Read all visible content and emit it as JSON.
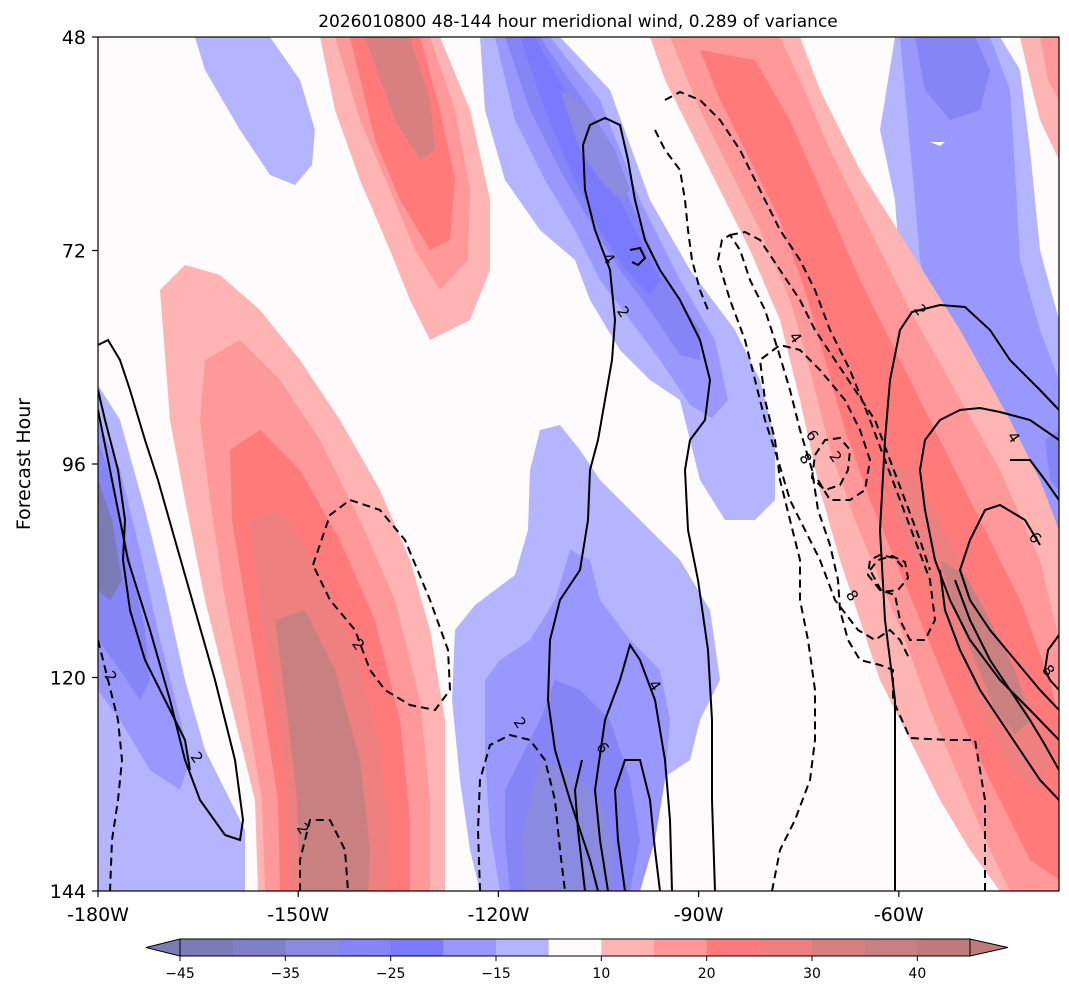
{
  "chart_data": {
    "type": "heatmap",
    "title": "2026010800 48-144 hour meridional wind, 0.289 of variance",
    "ylabel": "Forecast Hour",
    "xlabel": "",
    "xlim": [
      -180,
      -36
    ],
    "ylim": [
      48,
      144
    ],
    "y_inverted": true,
    "x_ticks": [
      {
        "value": -180,
        "label": "-180W"
      },
      {
        "value": -150,
        "label": "-150W"
      },
      {
        "value": -120,
        "label": "-120W"
      },
      {
        "value": -90,
        "label": "-90W"
      },
      {
        "value": -60,
        "label": "-60W"
      }
    ],
    "y_ticks": [
      {
        "value": 48,
        "label": "48"
      },
      {
        "value": 72,
        "label": "72"
      },
      {
        "value": 96,
        "label": "96"
      },
      {
        "value": 120,
        "label": "120"
      },
      {
        "value": 144,
        "label": "144"
      }
    ],
    "colorbar": {
      "levels": [
        -45,
        -40,
        -35,
        -30,
        -25,
        -20,
        -15,
        -10,
        10,
        15,
        20,
        25,
        30,
        35,
        40,
        45
      ],
      "colors": [
        "#7b7bb5",
        "#8080c8",
        "#8a8ae0",
        "#8585f5",
        "#7a7aff",
        "#9898ff",
        "#b4b4ff",
        "#fdfbfc",
        "#ffb4b4",
        "#ff9999",
        "#ff7b7b",
        "#ee8080",
        "#d88080",
        "#c88080",
        "#bf7a7a"
      ],
      "ticks": [
        {
          "value": -45,
          "label": "−45"
        },
        {
          "value": -35,
          "label": "−35"
        },
        {
          "value": -25,
          "label": "−25"
        },
        {
          "value": -15,
          "label": "−15"
        },
        {
          "value": 10,
          "label": "10"
        },
        {
          "value": 20,
          "label": "20"
        },
        {
          "value": 30,
          "label": "30"
        },
        {
          "value": 40,
          "label": "40"
        }
      ],
      "extend": "both"
    },
    "contour_labels": [
      {
        "text": "4",
        "lon": -103.5,
        "hour": 72.9
      },
      {
        "text": "2",
        "lon": -101.3,
        "hour": 78.9
      },
      {
        "text": "2",
        "lon": -56.8,
        "hour": 78.7
      },
      {
        "text": "4",
        "lon": -75.5,
        "hour": 81.8
      },
      {
        "text": "6",
        "lon": -73.0,
        "hour": 92.8
      },
      {
        "text": "8",
        "lon": -74.0,
        "hour": 95.4
      },
      {
        "text": "2",
        "lon": -69.5,
        "hour": 95.2
      },
      {
        "text": "4",
        "lon": -42.8,
        "hour": 93.0
      },
      {
        "text": "6",
        "lon": -39.6,
        "hour": 104.3
      },
      {
        "text": "8",
        "lon": -67.0,
        "hour": 110.8
      },
      {
        "text": "2",
        "lon": -141.0,
        "hour": 116.3
      },
      {
        "text": "2",
        "lon": -178.1,
        "hour": 119.9
      },
      {
        "text": "4",
        "lon": -96.6,
        "hour": 120.9
      },
      {
        "text": "2",
        "lon": -116.8,
        "hour": 125.1
      },
      {
        "text": "6",
        "lon": -104.4,
        "hour": 127.9
      },
      {
        "text": "2",
        "lon": -165.2,
        "hour": 129.0
      },
      {
        "text": "2",
        "lon": -149.3,
        "hour": 137.0
      },
      {
        "text": "8",
        "lon": -37.6,
        "hour": 119.2
      }
    ]
  }
}
